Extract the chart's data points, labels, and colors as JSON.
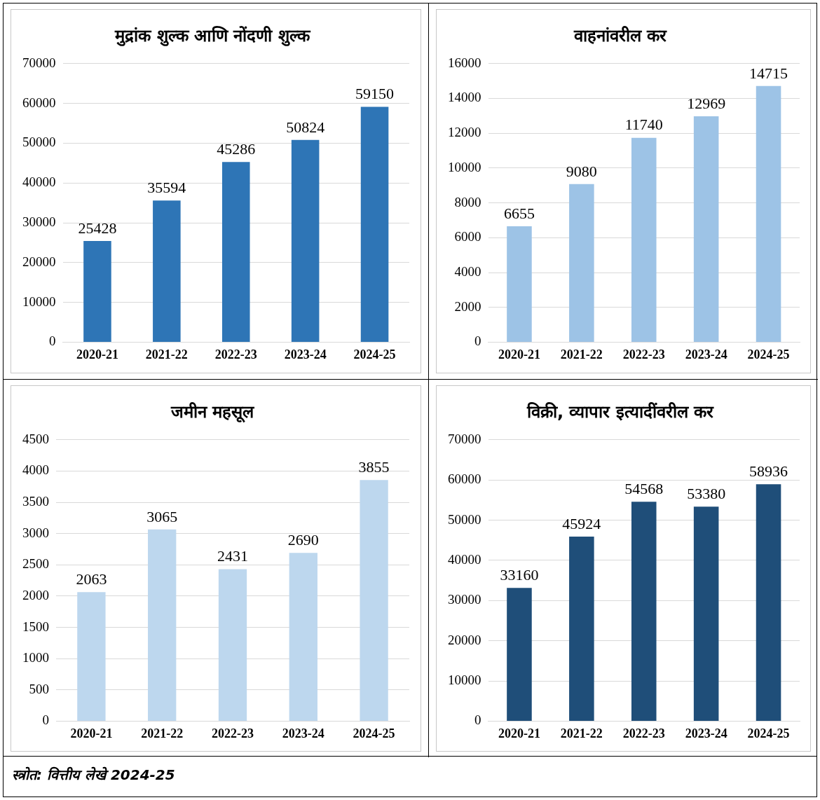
{
  "chart_data": [
    {
      "type": "bar",
      "title": "मुद्रांक शुल्क आणि नोंदणी शुल्क",
      "categories": [
        "2020-21",
        "2021-22",
        "2022-23",
        "2023-24",
        "2024-25"
      ],
      "values": [
        25428,
        35594,
        45286,
        50824,
        59150
      ],
      "color": "#2e75b6",
      "ylim": [
        0,
        70000
      ],
      "yticks": [
        0,
        10000,
        20000,
        30000,
        40000,
        50000,
        60000,
        70000
      ],
      "grid": "y",
      "data_labels": true
    },
    {
      "type": "bar",
      "title": "वाहनांवरील कर",
      "categories": [
        "2020-21",
        "2021-22",
        "2022-23",
        "2023-24",
        "2024-25"
      ],
      "values": [
        6655,
        9080,
        11740,
        12969,
        14715
      ],
      "color": "#9dc3e6",
      "ylim": [
        0,
        16000
      ],
      "yticks": [
        0,
        2000,
        4000,
        6000,
        8000,
        10000,
        12000,
        14000,
        16000
      ],
      "grid": "y",
      "data_labels": true
    },
    {
      "type": "bar",
      "title": "जमीन महसूल",
      "categories": [
        "2020-21",
        "2021-22",
        "2022-23",
        "2023-24",
        "2024-25"
      ],
      "values": [
        2063,
        3065,
        2431,
        2690,
        3855
      ],
      "color": "#bdd7ee",
      "ylim": [
        0,
        4500
      ],
      "yticks": [
        0,
        500,
        1000,
        1500,
        2000,
        2500,
        3000,
        3500,
        4000,
        4500
      ],
      "grid": "y",
      "data_labels": true
    },
    {
      "type": "bar",
      "title": "विक्री, व्यापार इत्यादींवरील कर",
      "categories": [
        "2020-21",
        "2021-22",
        "2022-23",
        "2023-24",
        "2024-25"
      ],
      "values": [
        33160,
        45924,
        54568,
        53380,
        58936
      ],
      "color": "#1f4e79",
      "ylim": [
        0,
        70000
      ],
      "yticks": [
        0,
        10000,
        20000,
        30000,
        40000,
        50000,
        60000,
        70000
      ],
      "grid": "y",
      "data_labels": true
    },
    {
      "type": "other",
      "annotations": [
        "स्त्रोत: वित्तीय लेखे 2024-25"
      ]
    }
  ]
}
